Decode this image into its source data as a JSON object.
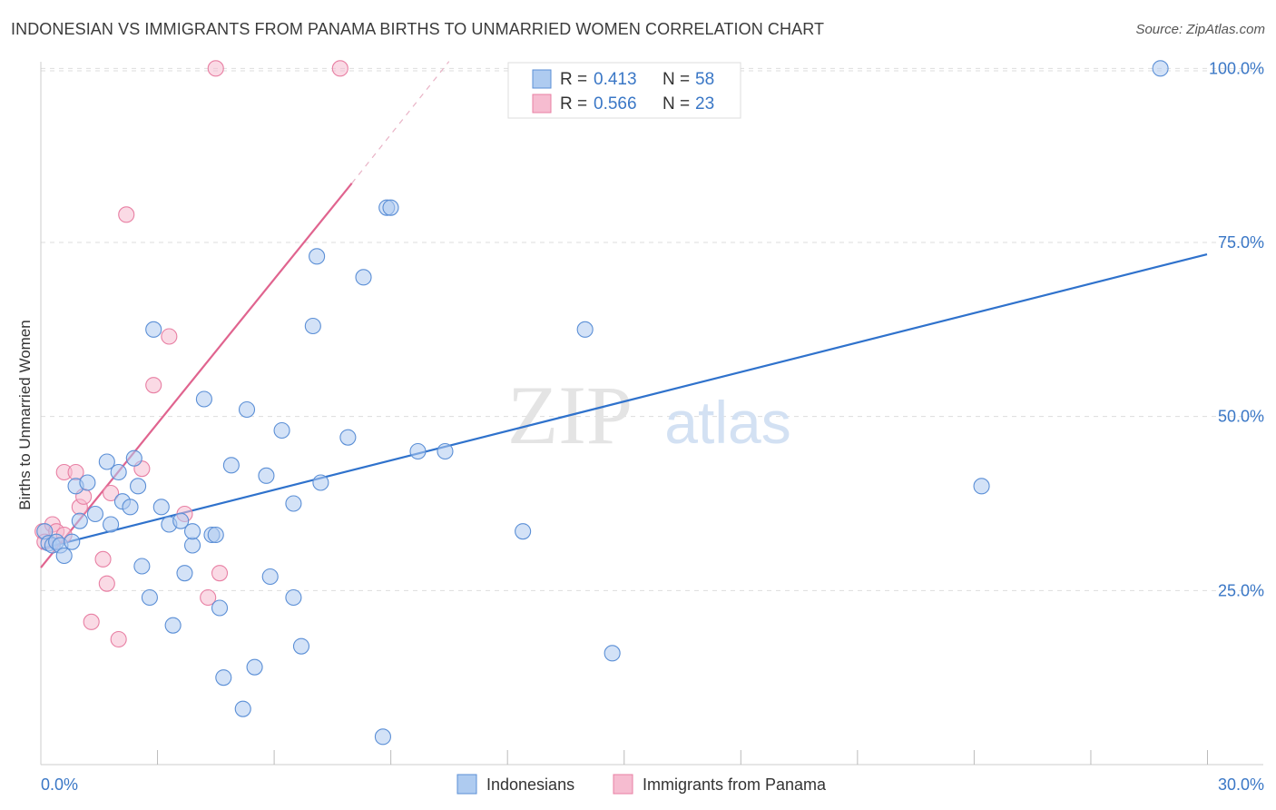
{
  "title": "INDONESIAN VS IMMIGRANTS FROM PANAMA BIRTHS TO UNMARRIED WOMEN CORRELATION CHART",
  "source": "Source: ZipAtlas.com",
  "watermark": {
    "zip": "ZIP",
    "atlas": "atlas"
  },
  "colors": {
    "blue_fill": "#aecbf0",
    "blue_stroke": "#5b8fd6",
    "blue_line": "#2f72cc",
    "pink_fill": "#f6bcd0",
    "pink_stroke": "#e87fa3",
    "pink_line": "#e0648f",
    "tick_text": "#3a77c6",
    "grid": "#dddddd"
  },
  "legend": {
    "rows": [
      {
        "r_label": "R =",
        "r_value": "0.413",
        "n_label": "N =",
        "n_value": "58"
      },
      {
        "r_label": "R =",
        "r_value": "0.566",
        "n_label": "N =",
        "n_value": "23"
      }
    ]
  },
  "chart_data": {
    "type": "scatter",
    "title": "INDONESIAN VS IMMIGRANTS FROM PANAMA BIRTHS TO UNMARRIED WOMEN CORRELATION CHART",
    "xlabel": "",
    "ylabel": "Births to Unmarried Women",
    "xlim": [
      0,
      30
    ],
    "ylim": [
      0,
      102
    ],
    "x_tick_labels": [
      "0.0%",
      "30.0%"
    ],
    "y_ticks": [
      25,
      50,
      75,
      100
    ],
    "y_tick_labels": [
      "25.0%",
      "50.0%",
      "75.0%",
      "100.0%"
    ],
    "series": [
      {
        "name": "Indonesians",
        "r": 0.413,
        "n": 58,
        "points": [
          [
            0.1,
            33.5
          ],
          [
            0.2,
            31.8
          ],
          [
            0.3,
            31.5
          ],
          [
            0.4,
            32.0
          ],
          [
            0.5,
            31.5
          ],
          [
            0.6,
            30.0
          ],
          [
            0.8,
            32.0
          ],
          [
            0.9,
            40.0
          ],
          [
            1.0,
            35.0
          ],
          [
            1.2,
            40.5
          ],
          [
            1.4,
            36.0
          ],
          [
            1.7,
            43.5
          ],
          [
            1.8,
            34.5
          ],
          [
            2.0,
            42.0
          ],
          [
            2.1,
            37.8
          ],
          [
            2.3,
            37.0
          ],
          [
            2.4,
            44.0
          ],
          [
            2.5,
            40.0
          ],
          [
            2.6,
            28.5
          ],
          [
            2.8,
            24.0
          ],
          [
            2.9,
            62.5
          ],
          [
            3.1,
            37.0
          ],
          [
            3.3,
            34.5
          ],
          [
            3.4,
            20.0
          ],
          [
            3.6,
            35.0
          ],
          [
            3.7,
            27.5
          ],
          [
            3.9,
            31.5
          ],
          [
            3.9,
            33.5
          ],
          [
            4.2,
            52.5
          ],
          [
            4.4,
            33.0
          ],
          [
            4.5,
            33.0
          ],
          [
            4.6,
            22.5
          ],
          [
            4.7,
            12.5
          ],
          [
            4.9,
            43.0
          ],
          [
            5.2,
            8.0
          ],
          [
            5.3,
            51.0
          ],
          [
            5.5,
            14.0
          ],
          [
            5.8,
            41.5
          ],
          [
            5.9,
            27.0
          ],
          [
            6.2,
            48.0
          ],
          [
            6.5,
            24.0
          ],
          [
            6.5,
            37.5
          ],
          [
            6.7,
            17.0
          ],
          [
            7.0,
            63.0
          ],
          [
            7.1,
            73.0
          ],
          [
            7.2,
            40.5
          ],
          [
            7.9,
            47.0
          ],
          [
            8.3,
            70.0
          ],
          [
            8.8,
            4.0
          ],
          [
            8.9,
            80.0
          ],
          [
            9.0,
            80.0
          ],
          [
            9.7,
            45.0
          ],
          [
            10.4,
            45.0
          ],
          [
            12.4,
            33.5
          ],
          [
            14.0,
            62.5
          ],
          [
            14.7,
            16.0
          ],
          [
            24.2,
            40.0
          ],
          [
            28.8,
            100.0
          ]
        ]
      },
      {
        "name": "Immigrants from Panama",
        "r": 0.566,
        "n": 23,
        "points": [
          [
            0.05,
            33.5
          ],
          [
            0.1,
            32.0
          ],
          [
            0.3,
            34.5
          ],
          [
            0.4,
            33.5
          ],
          [
            0.6,
            33.0
          ],
          [
            0.6,
            42.0
          ],
          [
            0.9,
            42.0
          ],
          [
            1.0,
            37.0
          ],
          [
            1.1,
            38.5
          ],
          [
            1.3,
            20.5
          ],
          [
            1.6,
            29.5
          ],
          [
            1.7,
            26.0
          ],
          [
            1.8,
            39.0
          ],
          [
            2.0,
            18.0
          ],
          [
            2.2,
            79.0
          ],
          [
            2.6,
            42.5
          ],
          [
            2.9,
            54.5
          ],
          [
            3.3,
            61.5
          ],
          [
            3.7,
            36.0
          ],
          [
            4.3,
            24.0
          ],
          [
            4.5,
            100.0
          ],
          [
            4.6,
            27.5
          ],
          [
            7.7,
            100.0
          ]
        ]
      }
    ],
    "trendlines": [
      {
        "series": "Indonesians",
        "x": [
          0,
          30
        ],
        "y": [
          31.0,
          73.3
        ]
      },
      {
        "series": "Immigrants from Panama",
        "x": [
          0,
          8.0
        ],
        "y": [
          28.3,
          83.5
        ],
        "dashed_x": [
          8.0,
          10.5
        ],
        "dashed_y": [
          83.5,
          101.0
        ]
      }
    ]
  }
}
